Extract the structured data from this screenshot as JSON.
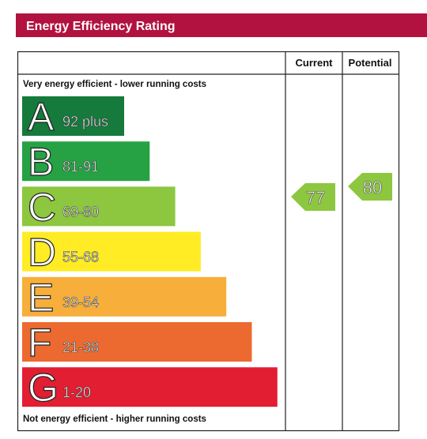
{
  "header": {
    "title": "Energy Efficiency Rating"
  },
  "table": {
    "headers": [
      "Current",
      "Potential"
    ],
    "top_note": "Very energy efficient - lower running costs",
    "bottom_note": "Not energy efficient - higher running costs",
    "bands": [
      {
        "letter": "A",
        "range": "92 plus",
        "color": "#157a3c"
      },
      {
        "letter": "B",
        "range": "81-91",
        "color": "#26a244"
      },
      {
        "letter": "C",
        "range": "69-80",
        "color": "#8dc63f"
      },
      {
        "letter": "D",
        "range": "55-68",
        "color": "#ffec24"
      },
      {
        "letter": "E",
        "range": "39-54",
        "color": "#f7ae3a"
      },
      {
        "letter": "F",
        "range": "21-38",
        "color": "#ec6a30"
      },
      {
        "letter": "G",
        "range": "1-20",
        "color": "#e21e32"
      }
    ],
    "current": {
      "value": 77,
      "color": "#8dc63f"
    },
    "potential": {
      "value": 80,
      "color": "#8dc63f"
    }
  }
}
